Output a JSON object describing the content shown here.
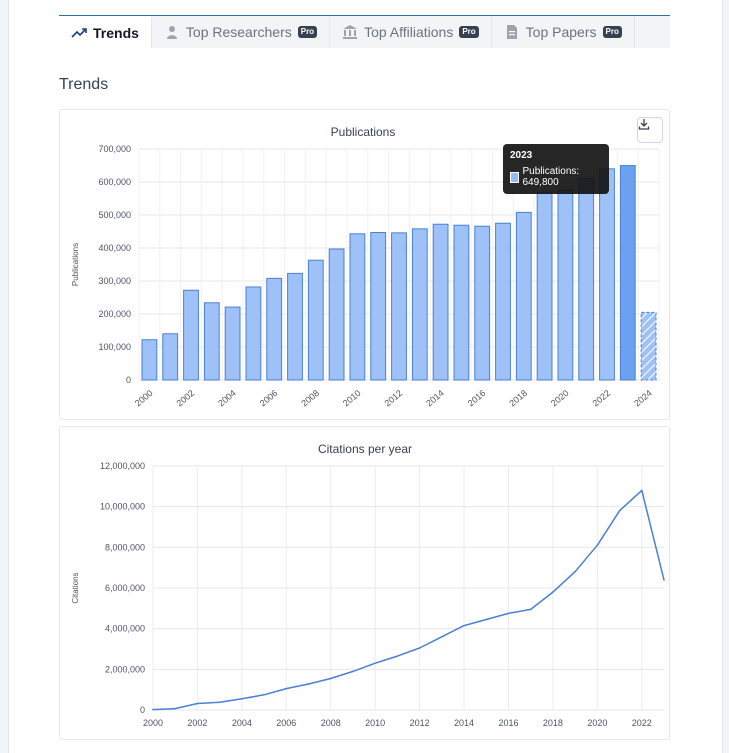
{
  "tabs": [
    {
      "label": "Trends",
      "icon": "trend-icon",
      "pro": "",
      "active": true
    },
    {
      "label": "Top Researchers",
      "icon": "person-icon",
      "pro": "Pro",
      "active": false
    },
    {
      "label": "Top Affiliations",
      "icon": "institution-icon",
      "pro": "Pro",
      "active": false
    },
    {
      "label": "Top Papers",
      "icon": "document-icon",
      "pro": "Pro",
      "active": false
    }
  ],
  "section_title": "Trends",
  "colors": {
    "bar": "#9ec2f7",
    "bar_border": "#4a7fd6",
    "bar_active": "#6aa2ef",
    "line": "#4a7fd6"
  },
  "tooltip": {
    "title": "2023",
    "label": "Publications: 649,800"
  },
  "chart_data": [
    {
      "type": "bar",
      "title": "Publications",
      "xlabel": "",
      "ylabel": "Publications",
      "ylim": [
        0,
        700000
      ],
      "yticks": [
        "0",
        "100,000",
        "200,000",
        "300,000",
        "400,000",
        "500,000",
        "600,000",
        "700,000"
      ],
      "x_tick_labels": [
        "2000",
        "2002",
        "2004",
        "2006",
        "2008",
        "2010",
        "2012",
        "2014",
        "2016",
        "2018",
        "2020",
        "2022",
        "2024"
      ],
      "categories": [
        "2000",
        "2001",
        "2002",
        "2003",
        "2004",
        "2005",
        "2006",
        "2007",
        "2008",
        "2009",
        "2010",
        "2011",
        "2012",
        "2013",
        "2014",
        "2015",
        "2016",
        "2017",
        "2018",
        "2019",
        "2020",
        "2021",
        "2022",
        "2023",
        "2024"
      ],
      "values": [
        122000,
        140000,
        272000,
        234000,
        221000,
        282000,
        308000,
        323000,
        363000,
        397000,
        443000,
        447000,
        446000,
        458000,
        472000,
        469000,
        466000,
        475000,
        508000,
        567000,
        576000,
        611000,
        640000,
        649800,
        205000
      ],
      "highlight": "2023",
      "partial": "2024"
    },
    {
      "type": "line",
      "title": "Citations per year",
      "xlabel": "",
      "ylabel": "Citations",
      "ylim": [
        0,
        12000000
      ],
      "yticks": [
        "0",
        "2,000,000",
        "4,000,000",
        "6,000,000",
        "8,000,000",
        "10,000,000",
        "12,000,000"
      ],
      "x_tick_labels": [
        "2000",
        "2002",
        "2004",
        "2006",
        "2008",
        "2010",
        "2012",
        "2014",
        "2016",
        "2018",
        "2020",
        "2022"
      ],
      "x": [
        2000,
        2001,
        2002,
        2003,
        2004,
        2005,
        2006,
        2007,
        2008,
        2009,
        2010,
        2011,
        2012,
        2013,
        2014,
        2015,
        2016,
        2017,
        2018,
        2019,
        2020,
        2021,
        2022,
        2023
      ],
      "values": [
        20000,
        70000,
        320000,
        380000,
        550000,
        750000,
        1050000,
        1280000,
        1550000,
        1900000,
        2300000,
        2650000,
        3050000,
        3600000,
        4150000,
        4450000,
        4750000,
        4950000,
        5800000,
        6800000,
        8100000,
        9800000,
        10800000,
        6400000
      ]
    }
  ]
}
